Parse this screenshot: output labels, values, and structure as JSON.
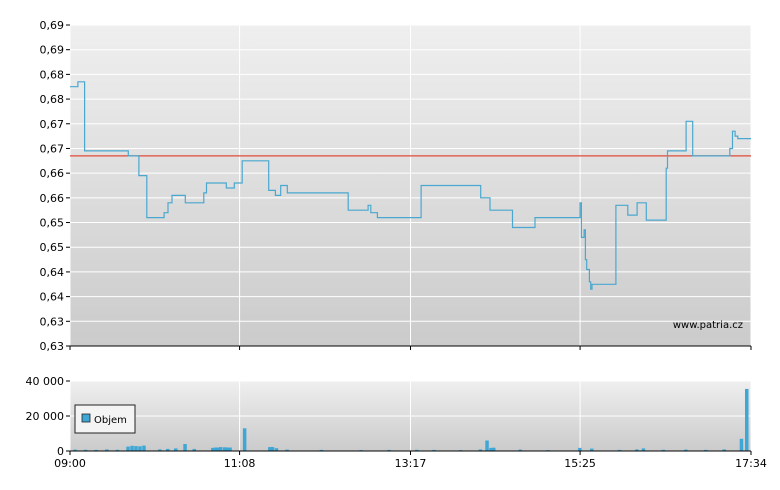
{
  "chart_data": [
    {
      "type": "line",
      "watermark": "www.patria.cz",
      "y_ticks": [
        "0,63",
        "0,63",
        "0,64",
        "0,64",
        "0,65",
        "0,65",
        "0,66",
        "0,66",
        "0,67",
        "0,67",
        "0,68",
        "0,68",
        "0,69",
        "0,69"
      ],
      "ylim": [
        0.63,
        0.695
      ],
      "reference_line": {
        "value": 0.6685,
        "color": "#e04a3a"
      },
      "line_color": "#4aa8d0",
      "grid": true,
      "series": [
        {
          "points": [
            [
              "09:00",
              0.6825
            ],
            [
              "09:06",
              0.6825
            ],
            [
              "09:06",
              0.6835
            ],
            [
              "09:11",
              0.6835
            ],
            [
              "09:11",
              0.6695
            ],
            [
              "09:44",
              0.6695
            ],
            [
              "09:44",
              0.6685
            ],
            [
              "09:52",
              0.6685
            ],
            [
              "09:52",
              0.6645
            ],
            [
              "09:58",
              0.6645
            ],
            [
              "09:58",
              0.656
            ],
            [
              "10:11",
              0.656
            ],
            [
              "10:11",
              0.657
            ],
            [
              "10:14",
              0.657
            ],
            [
              "10:14",
              0.659
            ],
            [
              "10:17",
              0.659
            ],
            [
              "10:17",
              0.6605
            ],
            [
              "10:27",
              0.6605
            ],
            [
              "10:27",
              0.659
            ],
            [
              "10:41",
              0.659
            ],
            [
              "10:41",
              0.661
            ],
            [
              "10:43",
              0.661
            ],
            [
              "10:43",
              0.663
            ],
            [
              "10:58",
              0.663
            ],
            [
              "10:58",
              0.662
            ],
            [
              "11:04",
              0.662
            ],
            [
              "11:04",
              0.663
            ],
            [
              "11:10",
              0.663
            ],
            [
              "11:10",
              0.6675
            ],
            [
              "11:30",
              0.6675
            ],
            [
              "11:30",
              0.6615
            ],
            [
              "11:35",
              0.6615
            ],
            [
              "11:35",
              0.6605
            ],
            [
              "11:39",
              0.6605
            ],
            [
              "11:39",
              0.6625
            ],
            [
              "11:44",
              0.6625
            ],
            [
              "11:44",
              0.661
            ],
            [
              "12:30",
              0.661
            ],
            [
              "12:30",
              0.6575
            ],
            [
              "12:45",
              0.6575
            ],
            [
              "12:45",
              0.6585
            ],
            [
              "12:47",
              0.6585
            ],
            [
              "12:47",
              0.657
            ],
            [
              "12:52",
              0.657
            ],
            [
              "12:52",
              0.656
            ],
            [
              "13:25",
              0.656
            ],
            [
              "13:25",
              0.6625
            ],
            [
              "14:10",
              0.6625
            ],
            [
              "14:10",
              0.66
            ],
            [
              "14:17",
              0.66
            ],
            [
              "14:17",
              0.6575
            ],
            [
              "14:34",
              0.6575
            ],
            [
              "14:34",
              0.654
            ],
            [
              "14:51",
              0.654
            ],
            [
              "14:51",
              0.656
            ],
            [
              "15:25",
              0.656
            ],
            [
              "15:25",
              0.659
            ],
            [
              "15:26",
              0.659
            ],
            [
              "15:26",
              0.652
            ],
            [
              "15:28",
              0.652
            ],
            [
              "15:28",
              0.6535
            ],
            [
              "15:29",
              0.6535
            ],
            [
              "15:29",
              0.6475
            ],
            [
              "15:30",
              0.6475
            ],
            [
              "15:30",
              0.6455
            ],
            [
              "15:32",
              0.6455
            ],
            [
              "15:32",
              0.643
            ],
            [
              "15:33",
              0.643
            ],
            [
              "15:33",
              0.6415
            ],
            [
              "15:34",
              0.6415
            ],
            [
              "15:34",
              0.6425
            ],
            [
              "15:52",
              0.6425
            ],
            [
              "15:52",
              0.6585
            ],
            [
              "16:01",
              0.6585
            ],
            [
              "16:01",
              0.6565
            ],
            [
              "16:08",
              0.6565
            ],
            [
              "16:08",
              0.659
            ],
            [
              "16:15",
              0.659
            ],
            [
              "16:15",
              0.6555
            ],
            [
              "16:30",
              0.6555
            ],
            [
              "16:30",
              0.666
            ],
            [
              "16:31",
              0.666
            ],
            [
              "16:31",
              0.6695
            ],
            [
              "16:45",
              0.6695
            ],
            [
              "16:45",
              0.6755
            ],
            [
              "16:50",
              0.6755
            ],
            [
              "16:50",
              0.6685
            ],
            [
              "17:18",
              0.6685
            ],
            [
              "17:18",
              0.67
            ],
            [
              "17:20",
              0.67
            ],
            [
              "17:20",
              0.6735
            ],
            [
              "17:22",
              0.6735
            ],
            [
              "17:22",
              0.6725
            ],
            [
              "17:24",
              0.6725
            ],
            [
              "17:24",
              0.672
            ],
            [
              "17:34",
              0.672
            ]
          ]
        }
      ]
    },
    {
      "type": "bar",
      "y_ticks": [
        "0",
        "20 000",
        "40 000"
      ],
      "ylim": [
        0,
        40000
      ],
      "x_ticks": [
        "09:00",
        "11:08",
        "13:17",
        "15:25",
        "17:34"
      ],
      "legend": {
        "label": "Objem",
        "position": "left"
      },
      "bar_color": "#3fa7d6",
      "grid": true,
      "series": [
        {
          "name": "Objem",
          "points": [
            [
              "09:04",
              800
            ],
            [
              "09:12",
              700
            ],
            [
              "09:20",
              600
            ],
            [
              "09:28",
              900
            ],
            [
              "09:36",
              700
            ],
            [
              "09:44",
              2500
            ],
            [
              "09:47",
              3000
            ],
            [
              "09:50",
              2800
            ],
            [
              "09:53",
              2700
            ],
            [
              "09:56",
              3100
            ],
            [
              "10:08",
              900
            ],
            [
              "10:14",
              1200
            ],
            [
              "10:20",
              1500
            ],
            [
              "10:27",
              4000
            ],
            [
              "10:34",
              1200
            ],
            [
              "10:48",
              1800
            ],
            [
              "10:50",
              2000
            ],
            [
              "10:52",
              2000
            ],
            [
              "10:54",
              2200
            ],
            [
              "10:57",
              2100
            ],
            [
              "10:59",
              2000
            ],
            [
              "11:01",
              2000
            ],
            [
              "11:12",
              13000
            ],
            [
              "11:31",
              2200
            ],
            [
              "11:33",
              2300
            ],
            [
              "11:36",
              1600
            ],
            [
              "11:44",
              800
            ],
            [
              "12:10",
              600
            ],
            [
              "12:40",
              500
            ],
            [
              "13:01",
              600
            ],
            [
              "13:22",
              700
            ],
            [
              "13:35",
              600
            ],
            [
              "13:55",
              500
            ],
            [
              "14:10",
              900
            ],
            [
              "14:15",
              6000
            ],
            [
              "14:18",
              1800
            ],
            [
              "14:20",
              1900
            ],
            [
              "14:40",
              800
            ],
            [
              "15:01",
              500
            ],
            [
              "15:25",
              1800
            ],
            [
              "15:34",
              1400
            ],
            [
              "15:55",
              600
            ],
            [
              "16:08",
              900
            ],
            [
              "16:13",
              1500
            ],
            [
              "16:28",
              700
            ],
            [
              "16:45",
              800
            ],
            [
              "17:00",
              600
            ],
            [
              "17:14",
              900
            ],
            [
              "17:27",
              7000
            ],
            [
              "17:31",
              35500
            ]
          ]
        }
      ]
    }
  ]
}
